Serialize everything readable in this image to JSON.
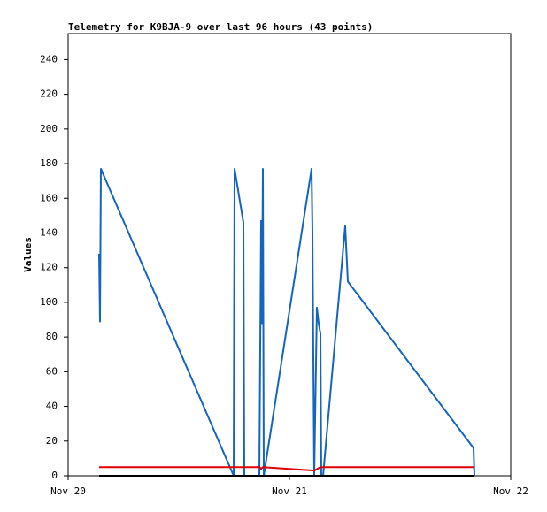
{
  "chart_data": {
    "type": "line",
    "title": "Telemetry for K9BJA-9 over last 96 hours (43 points)",
    "y_label": "Values",
    "xlim": [
      0,
      2
    ],
    "xticks": [
      {
        "value": 0,
        "label": "Nov 20"
      },
      {
        "value": 1,
        "label": "Nov 21"
      },
      {
        "value": 2,
        "label": "Nov 22"
      }
    ],
    "ylim": [
      0,
      255
    ],
    "yticks": [
      0,
      20,
      40,
      60,
      80,
      100,
      120,
      140,
      160,
      180,
      200,
      220,
      240
    ],
    "grid": false,
    "series": [
      {
        "color": "#1565c0",
        "x": [
          0.14,
          0.144,
          0.148,
          0.748,
          0.752,
          0.792,
          0.796,
          0.864,
          0.872,
          0.876,
          0.88,
          0.884,
          1.1,
          1.104,
          1.108,
          1.112,
          1.124,
          1.132,
          1.14,
          1.144,
          1.152,
          1.252,
          1.264,
          1.832,
          1.836
        ],
        "values": [
          128,
          89,
          177,
          0,
          177,
          146,
          0,
          0,
          147,
          88,
          177,
          0,
          177,
          140,
          68,
          0,
          97,
          88,
          82,
          0,
          0,
          144,
          112,
          16,
          0
        ]
      },
      {
        "color": "#e00000",
        "x": [
          0.14,
          0.864,
          0.872,
          0.88,
          1.112,
          1.14,
          1.836
        ],
        "values": [
          5,
          5,
          4,
          5,
          3,
          5,
          5
        ]
      },
      {
        "color": "#000000",
        "x": [
          0.14,
          1.836
        ],
        "values": [
          0,
          0
        ]
      }
    ]
  }
}
